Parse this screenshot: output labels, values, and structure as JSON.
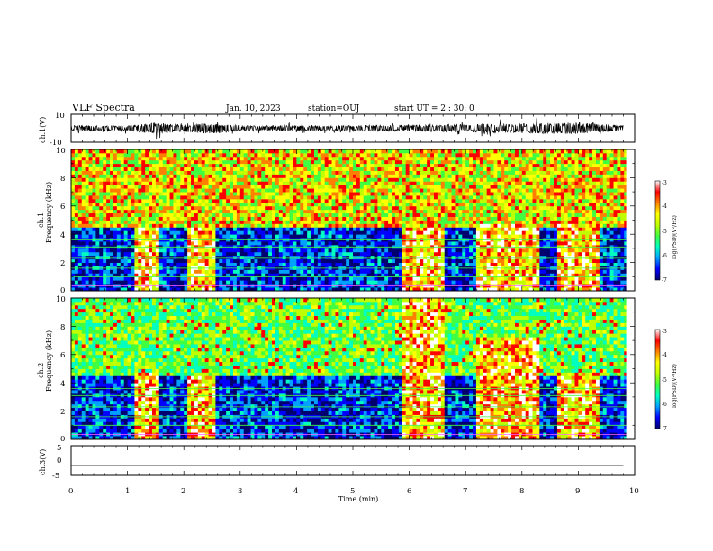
{
  "header": {
    "title": "VLF Spectra",
    "date": "Jan. 10, 2023",
    "station": "station=OUJ",
    "start": "start UT =  2 : 30: 0"
  },
  "panels": {
    "ch1v": {
      "ylabel": "ch.1(V)",
      "ticks": [
        "10",
        "-10"
      ]
    },
    "spec1": {
      "ylabel_ch": "ch.1",
      "ylabel": "Frequency (kHz)",
      "ticks": [
        "0",
        "2",
        "4",
        "6",
        "8",
        "10"
      ]
    },
    "spec2": {
      "ylabel_ch": "ch.2",
      "ylabel": "Frequency (kHz)",
      "ticks": [
        "0",
        "2",
        "4",
        "6",
        "8",
        "10"
      ]
    },
    "ch3v": {
      "ylabel": "ch.3(V)",
      "ticks": [
        "5",
        "0",
        "-5"
      ]
    }
  },
  "xaxis": {
    "label": "Time (min)",
    "ticks": [
      "0",
      "1",
      "2",
      "3",
      "4",
      "5",
      "6",
      "7",
      "8",
      "9",
      "10"
    ]
  },
  "colorbar": {
    "label": "log(PSD)(V²/Hz)",
    "ticks": [
      "-3",
      "-4",
      "-5",
      "-6",
      "-7"
    ]
  },
  "colors": {
    "scale": [
      "#00006e",
      "#0000ff",
      "#00a0ff",
      "#00ffc0",
      "#40ff40",
      "#c0ff00",
      "#ffff00",
      "#ff8000",
      "#ff0000",
      "#ffffff"
    ]
  },
  "chart_data": [
    {
      "type": "line",
      "name_key": "ch.1(V)",
      "xlabel": "Time (min)",
      "ylabel": "ch.1(V)",
      "xlim": [
        0,
        10
      ],
      "ylim": [
        -10,
        10
      ],
      "x": [
        0,
        1,
        1.5,
        2,
        2.5,
        3,
        4,
        5,
        6,
        6.5,
        7,
        8,
        8.5,
        9,
        9.8
      ],
      "y_amplitude": [
        2,
        2,
        4,
        2.5,
        4,
        2,
        2,
        2,
        2.5,
        2.5,
        3,
        3.5,
        4,
        4,
        2
      ]
    },
    {
      "type": "heatmap",
      "channel": "ch.1",
      "xlabel": "Time (min)",
      "ylabel": "Frequency (kHz)",
      "xlim": [
        0,
        10
      ],
      "ylim": [
        0,
        10
      ],
      "colorbar_range": [
        -7,
        -3
      ],
      "bursts": [
        {
          "x": [
            1.15,
            1.55
          ],
          "y": [
            0,
            4.5
          ]
        },
        {
          "x": [
            2.05,
            2.55
          ],
          "y": [
            0,
            4.5
          ]
        },
        {
          "x": [
            5.9,
            6.65
          ],
          "y": [
            0,
            4.6
          ]
        },
        {
          "x": [
            7.2,
            8.3
          ],
          "y": [
            0,
            4.8
          ]
        },
        {
          "x": [
            8.6,
            9.35
          ],
          "y": [
            0,
            4.8
          ]
        }
      ]
    },
    {
      "type": "heatmap",
      "channel": "ch.2",
      "xlabel": "Time (min)",
      "ylabel": "Frequency (kHz)",
      "xlim": [
        0,
        10
      ],
      "ylim": [
        0,
        10
      ],
      "colorbar_range": [
        -7,
        -3
      ],
      "bursts": [
        {
          "x": [
            1.15,
            1.55
          ],
          "y": [
            0,
            4.8
          ]
        },
        {
          "x": [
            2.05,
            2.55
          ],
          "y": [
            0,
            4.6
          ]
        },
        {
          "x": [
            5.9,
            6.65
          ],
          "y": [
            0,
            10
          ]
        },
        {
          "x": [
            7.2,
            8.3
          ],
          "y": [
            0,
            7.2
          ]
        },
        {
          "x": [
            8.6,
            9.35
          ],
          "y": [
            0,
            4.8
          ]
        }
      ]
    },
    {
      "type": "line",
      "name_key": "ch.3(V)",
      "xlabel": "Time (min)",
      "ylabel": "ch.3(V)",
      "xlim": [
        0,
        10
      ],
      "ylim": [
        -5,
        5
      ],
      "x": [
        0,
        9.8
      ],
      "y": [
        -1.6,
        -1.6
      ]
    }
  ]
}
